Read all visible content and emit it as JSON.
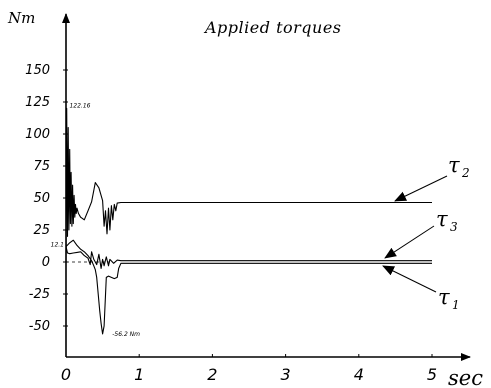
{
  "chart_data": {
    "type": "line",
    "title": "Applied torques",
    "xlabel": "sec",
    "ylabel": "Nm",
    "xlim": [
      0,
      5
    ],
    "ylim": [
      -75,
      175
    ],
    "x_ticks": [
      "0",
      "1",
      "2",
      "3",
      "4",
      "5"
    ],
    "y_ticks": [
      "150",
      "125",
      "100",
      "75",
      "50",
      "25",
      "0",
      "-25",
      "-50"
    ],
    "grid": false,
    "annotations": [
      {
        "text": "122.16",
        "x": 0.02,
        "y": 122.16
      },
      {
        "text": "12.1",
        "x": 0.0,
        "y": 12.1
      },
      {
        "text": "-56.2 Nm",
        "x": 0.55,
        "y": -56.2
      }
    ],
    "series": [
      {
        "name": "2",
        "x": [
          0,
          0.01,
          0.02,
          0.03,
          0.04,
          0.05,
          0.06,
          0.07,
          0.08,
          0.09,
          0.1,
          0.11,
          0.12,
          0.13,
          0.14,
          0.15,
          0.17,
          0.2,
          0.25,
          0.3,
          0.35,
          0.4,
          0.45,
          0.5,
          0.52,
          0.54,
          0.56,
          0.58,
          0.6,
          0.62,
          0.64,
          0.66,
          0.68,
          0.7,
          0.75,
          0.8,
          1,
          2,
          3,
          4,
          5
        ],
        "values": [
          0,
          120,
          20,
          105,
          25,
          88,
          30,
          70,
          28,
          60,
          30,
          52,
          35,
          45,
          38,
          42,
          38,
          35,
          33,
          40,
          47,
          62,
          58,
          48,
          28,
          40,
          22,
          42,
          25,
          44,
          33,
          45,
          40,
          46,
          46.5,
          46.5,
          46.5,
          46.5,
          46.5,
          46.5,
          46.5
        ]
      },
      {
        "name": "3",
        "x": [
          0,
          0.02,
          0.05,
          0.1,
          0.15,
          0.2,
          0.25,
          0.3,
          0.33,
          0.35,
          0.38,
          0.4,
          0.42,
          0.45,
          0.48,
          0.5,
          0.52,
          0.55,
          0.58,
          0.6,
          0.65,
          0.7,
          0.75,
          0.8,
          1,
          2,
          3,
          4,
          5
        ],
        "values": [
          12.1,
          7,
          6.5,
          7,
          7.5,
          8,
          5,
          3,
          -2,
          8,
          2,
          0,
          -2,
          6,
          -5,
          2,
          -3,
          4,
          -3,
          2,
          -1,
          1.5,
          1,
          1,
          1,
          1,
          1,
          1,
          1
        ]
      },
      {
        "name": "1",
        "x": [
          0,
          0.05,
          0.1,
          0.15,
          0.2,
          0.25,
          0.3,
          0.35,
          0.38,
          0.4,
          0.42,
          0.44,
          0.46,
          0.48,
          0.5,
          0.52,
          0.55,
          0.58,
          0.62,
          0.66,
          0.7,
          0.72,
          0.75,
          1,
          2,
          3,
          4,
          5
        ],
        "values": [
          12,
          15,
          17,
          13,
          10,
          8,
          5,
          1,
          -3,
          -6,
          -12,
          -25,
          -38,
          -48,
          -56.2,
          -50,
          -12,
          -11,
          -12,
          -13,
          -12,
          -5,
          -1,
          -1,
          -1,
          -1,
          -1,
          -1
        ]
      }
    ],
    "reference_line": {
      "y": 0,
      "x_end": 0.6,
      "style": "dashed"
    }
  }
}
